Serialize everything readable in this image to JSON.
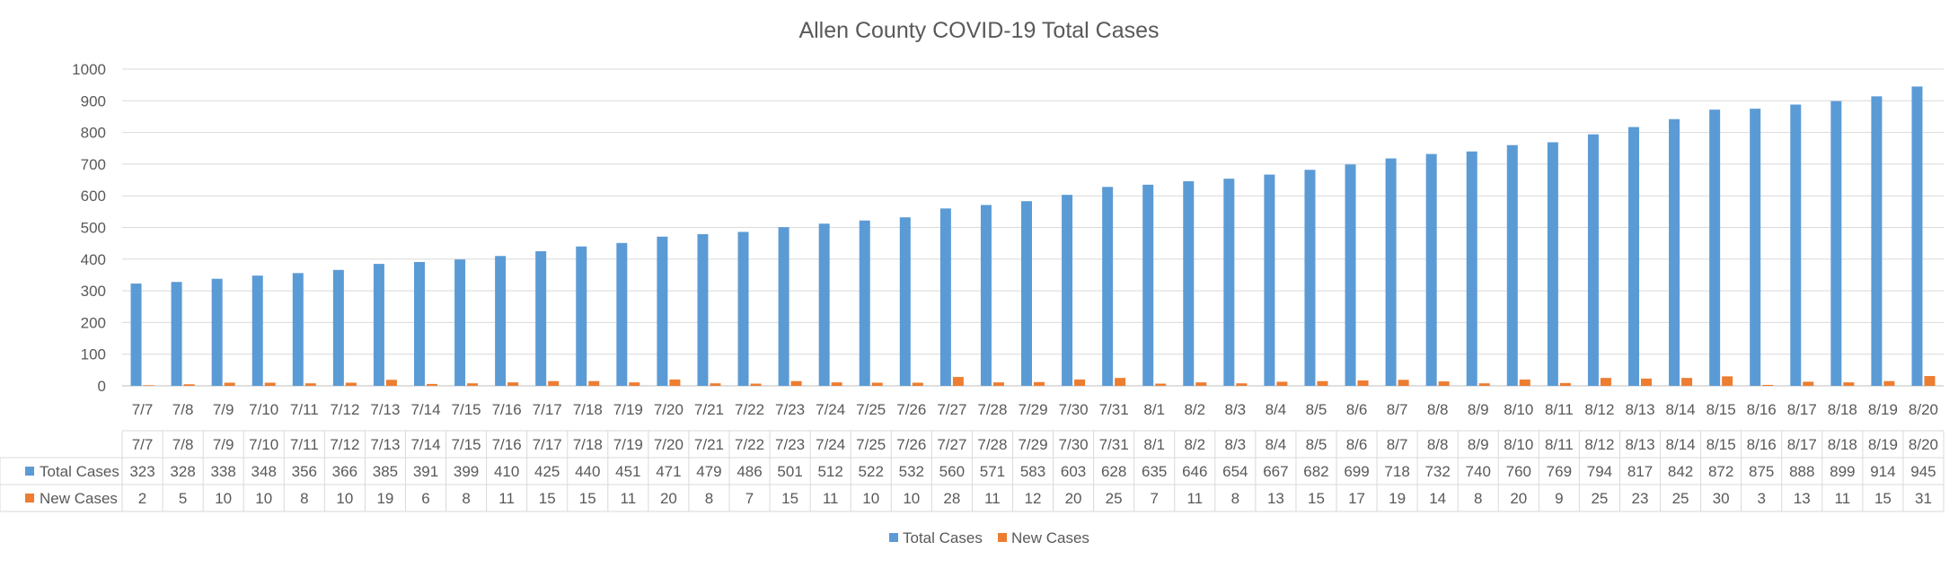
{
  "chart_data": {
    "type": "bar",
    "title": "Allen County COVID-19 Total Cases",
    "xlabel": "",
    "ylabel": "",
    "ylim": [
      0,
      1000
    ],
    "yticks": [
      0,
      100,
      200,
      300,
      400,
      500,
      600,
      700,
      800,
      900,
      1000
    ],
    "grid": true,
    "legend_position": "bottom",
    "categories": [
      "7/7",
      "7/8",
      "7/9",
      "7/10",
      "7/11",
      "7/12",
      "7/13",
      "7/14",
      "7/15",
      "7/16",
      "7/17",
      "7/18",
      "7/19",
      "7/20",
      "7/21",
      "7/22",
      "7/23",
      "7/24",
      "7/25",
      "7/26",
      "7/27",
      "7/28",
      "7/29",
      "7/30",
      "7/31",
      "8/1",
      "8/2",
      "8/3",
      "8/4",
      "8/5",
      "8/6",
      "8/7",
      "8/8",
      "8/9",
      "8/10",
      "8/11",
      "8/12",
      "8/13",
      "8/14",
      "8/15",
      "8/16",
      "8/17",
      "8/18",
      "8/19",
      "8/20"
    ],
    "series": [
      {
        "name": "Total Cases",
        "color": "#5B9BD5",
        "values": [
          323,
          328,
          338,
          348,
          356,
          366,
          385,
          391,
          399,
          410,
          425,
          440,
          451,
          471,
          479,
          486,
          501,
          512,
          522,
          532,
          560,
          571,
          583,
          603,
          628,
          635,
          646,
          654,
          667,
          682,
          699,
          718,
          732,
          740,
          760,
          769,
          794,
          817,
          842,
          872,
          875,
          888,
          899,
          914,
          945
        ]
      },
      {
        "name": "New Cases",
        "color": "#ED7D31",
        "values": [
          2,
          5,
          10,
          10,
          8,
          10,
          19,
          6,
          8,
          11,
          15,
          15,
          11,
          20,
          8,
          7,
          15,
          11,
          10,
          10,
          28,
          11,
          12,
          20,
          25,
          7,
          11,
          8,
          13,
          15,
          17,
          19,
          14,
          8,
          20,
          9,
          25,
          23,
          25,
          30,
          3,
          13,
          11,
          15,
          31
        ]
      }
    ]
  }
}
